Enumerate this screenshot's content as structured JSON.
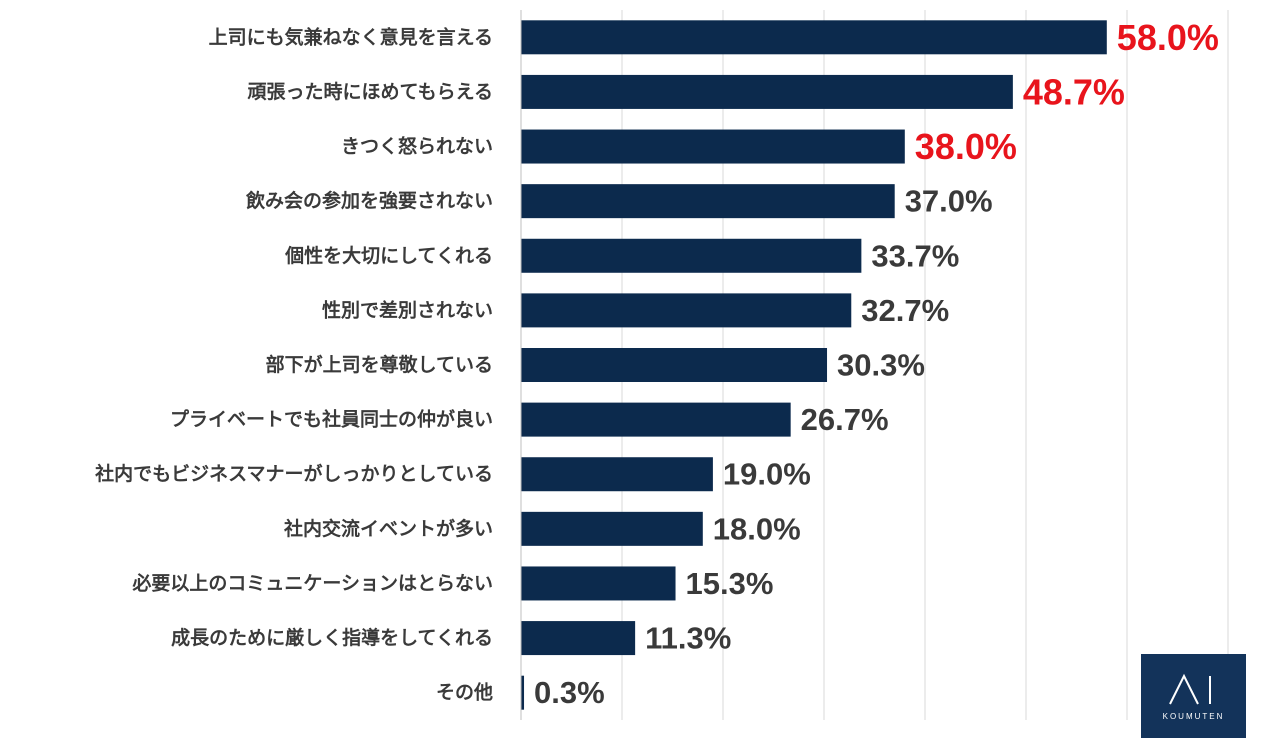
{
  "chart_data": {
    "type": "bar",
    "orientation": "horizontal",
    "categories": [
      "上司にも気兼ねなく意見を言える",
      "頑張った時にほめてもらえる",
      "きつく怒られない",
      "飲み会の参加を強要されない",
      "個性を大切にしてくれる",
      "性別で差別されない",
      "部下が上司を尊敬している",
      "プライベートでも社員同士の仲が良い",
      "社内でもビジネスマナーがしっかりとしている",
      "社内交流イベントが多い",
      "必要以上のコミュニケーションはとらない",
      "成長のために厳しく指導をしてくれる",
      "その他"
    ],
    "values": [
      58.0,
      48.7,
      38.0,
      37.0,
      33.7,
      32.7,
      30.3,
      26.7,
      19.0,
      18.0,
      15.3,
      11.3,
      0.3
    ],
    "value_labels": [
      "58.0%",
      "48.7%",
      "38.0%",
      "37.0%",
      "33.7%",
      "32.7%",
      "30.3%",
      "26.7%",
      "19.0%",
      "18.0%",
      "15.3%",
      "11.3%",
      "0.3%"
    ],
    "highlighted": [
      true,
      true,
      true,
      false,
      false,
      false,
      false,
      false,
      false,
      false,
      false,
      false,
      false
    ],
    "xlim": [
      0,
      70
    ],
    "grid": true,
    "colors": {
      "bar": "#0c2a4d",
      "highlight_label": "#e8141c",
      "label": "#3a3a3a",
      "gridline": "#d9d9d9"
    }
  },
  "logo": {
    "text": "KOUMUTEN",
    "color": "#13335a"
  }
}
